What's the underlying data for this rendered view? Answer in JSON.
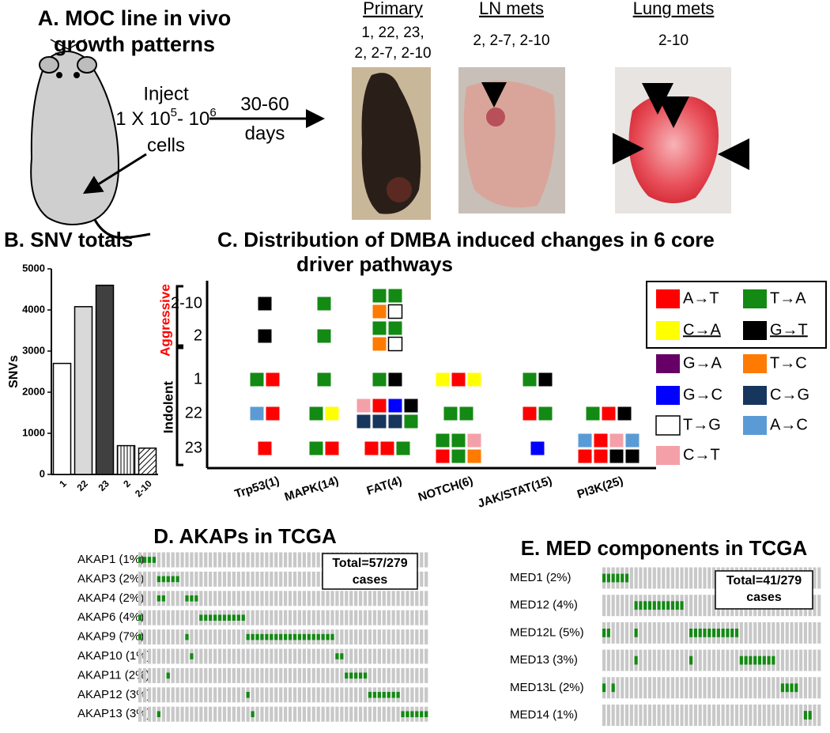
{
  "panel_a": {
    "title_lines": [
      "A. MOC line in vivo",
      "growth patterns"
    ],
    "injection": {
      "line1": "Inject",
      "base": "1 X 10",
      "exp1": "5",
      "mid": "- 10",
      "exp2": "6",
      "line3": "cells"
    },
    "duration": [
      "30-60",
      "days"
    ],
    "photos": [
      {
        "title": "Primary",
        "lines": [
          "1, 22, 23,",
          "2, 2-7, 2-10"
        ]
      },
      {
        "title": "LN mets",
        "lines": [
          "2, 2-7, 2-10"
        ]
      },
      {
        "title": "Lung mets",
        "lines": [
          "2-10"
        ]
      }
    ]
  },
  "chart_data": {
    "type": "bar",
    "title": "B. SNV totals",
    "y_label": "SNVs",
    "categories": [
      "1",
      "22",
      "23",
      "2",
      "2-10"
    ],
    "values": [
      2700,
      4080,
      4600,
      700,
      640
    ],
    "bar_styles": [
      "white",
      "#d9d9d9",
      "#404040",
      "vstripe",
      "hatch"
    ],
    "ylim": [
      0,
      5000
    ],
    "yticks": [
      0,
      1000,
      2000,
      3000,
      4000,
      5000
    ]
  },
  "panel_c": {
    "title_lines": [
      "C. Distribution of DMBA induced changes in 6 core",
      "driver pathways"
    ],
    "rows": [
      "2-10",
      "2",
      "1",
      "22",
      "23"
    ],
    "columns": [
      "Trp53(1)",
      "MAPK(14)",
      "FAT(4)",
      "NOTCH(6)",
      "JAK/STAT(15)",
      "PI3K(25)"
    ],
    "groups": {
      "aggressive": "Aggressive",
      "indolent": "Indolent"
    },
    "legend_boxed_count": 4,
    "legend": [
      {
        "label": "A→T",
        "color": "#ff0000"
      },
      {
        "label": "T→A",
        "color": "#138a13"
      },
      {
        "label": "C→A",
        "color": "#ffff00",
        "underline": true
      },
      {
        "label": "G→T",
        "color": "#000000",
        "underline": true
      },
      {
        "label": "G→A",
        "color": "#660066"
      },
      {
        "label": "T→C",
        "color": "#ff7a00"
      },
      {
        "label": "G→C",
        "color": "#0000ff"
      },
      {
        "label": "C→G",
        "color": "#17365d"
      },
      {
        "label": "T→G",
        "color": "#ffffff"
      },
      {
        "label": "A→C",
        "color": "#5b9bd5"
      },
      {
        "label": "C→T",
        "color": "#f4a0a8"
      }
    ],
    "cells": [
      [
        [
          [
            3
          ]
        ],
        [
          [
            1
          ]
        ],
        [
          [
            1,
            1
          ],
          [
            5,
            8
          ]
        ],
        [],
        [],
        []
      ],
      [
        [
          [
            3
          ]
        ],
        [
          [
            1
          ]
        ],
        [
          [
            1,
            1
          ],
          [
            5,
            8
          ]
        ],
        [],
        [],
        []
      ],
      [
        [
          [
            1,
            0
          ]
        ],
        [
          [
            1
          ]
        ],
        [
          [
            1,
            3
          ]
        ],
        [
          [
            2,
            0,
            2
          ]
        ],
        [
          [
            1,
            3
          ]
        ],
        []
      ],
      [
        [
          [
            9,
            0
          ]
        ],
        [
          [
            1,
            2
          ]
        ],
        [
          [
            10,
            0,
            6,
            3
          ],
          [
            7,
            7,
            7,
            1
          ]
        ],
        [
          [
            1,
            1
          ]
        ],
        [
          [
            0,
            1
          ]
        ],
        [
          [
            1,
            0,
            3
          ]
        ]
      ],
      [
        [
          [
            0
          ]
        ],
        [
          [
            1,
            0
          ]
        ],
        [
          [
            0,
            0,
            1
          ]
        ],
        [
          [
            1,
            1,
            10
          ],
          [
            0,
            1,
            5
          ]
        ],
        [
          [
            6
          ]
        ],
        [
          [
            9,
            0,
            10,
            9
          ],
          [
            0,
            0,
            3,
            3
          ]
        ]
      ]
    ]
  },
  "panel_d": {
    "title": "D. AKAPs in TCGA",
    "total_lines": [
      "Total=57/279",
      "cases"
    ],
    "columns": 62,
    "rows": [
      {
        "label": "AKAP1 (1%)",
        "altered": [
          0,
          1,
          2,
          3
        ]
      },
      {
        "label": "AKAP3 (2%)",
        "altered": [
          4,
          5,
          6,
          7,
          8
        ]
      },
      {
        "label": "AKAP4 (2%)",
        "altered": [
          4,
          5,
          10,
          11,
          12
        ]
      },
      {
        "label": "AKAP6 (4%)",
        "altered": [
          0,
          13,
          14,
          15,
          16,
          17,
          18,
          19,
          20,
          21,
          22
        ]
      },
      {
        "label": "AKAP9 (7%)",
        "altered": [
          0,
          10,
          23,
          24,
          25,
          26,
          27,
          28,
          29,
          30,
          31,
          32,
          33,
          34,
          35,
          36,
          37,
          38,
          39,
          40,
          41
        ]
      },
      {
        "label": "AKAP10 (1%)",
        "altered": [
          11,
          42,
          43
        ]
      },
      {
        "label": "AKAP11 (2%)",
        "altered": [
          6,
          44,
          45,
          46,
          47,
          48
        ]
      },
      {
        "label": "AKAP12 (3%)",
        "altered": [
          23,
          49,
          50,
          51,
          52,
          53,
          54,
          55
        ]
      },
      {
        "label": "AKAP13 (3%)",
        "altered": [
          4,
          24,
          56,
          57,
          58,
          59,
          60,
          61
        ]
      }
    ]
  },
  "panel_e": {
    "title": "E. MED components in TCGA",
    "total_lines": [
      "Total=41/279",
      "cases"
    ],
    "columns": 48,
    "rows": [
      {
        "label": "MED1 (2%)",
        "altered": [
          0,
          1,
          2,
          3,
          4,
          5
        ]
      },
      {
        "label": "MED12 (4%)",
        "altered": [
          7,
          8,
          9,
          10,
          11,
          12,
          13,
          14,
          15,
          16,
          17
        ]
      },
      {
        "label": "MED12L (5%)",
        "altered": [
          0,
          1,
          7,
          19,
          20,
          21,
          22,
          23,
          24,
          25,
          26,
          27,
          28,
          29
        ]
      },
      {
        "label": "MED13 (3%)",
        "altered": [
          7,
          19,
          30,
          31,
          32,
          33,
          34,
          35,
          36,
          37
        ]
      },
      {
        "label": "MED13L (2%)",
        "altered": [
          0,
          2,
          39,
          40,
          41,
          42
        ]
      },
      {
        "label": "MED14 (1%)",
        "altered": [
          44,
          45
        ]
      }
    ]
  }
}
